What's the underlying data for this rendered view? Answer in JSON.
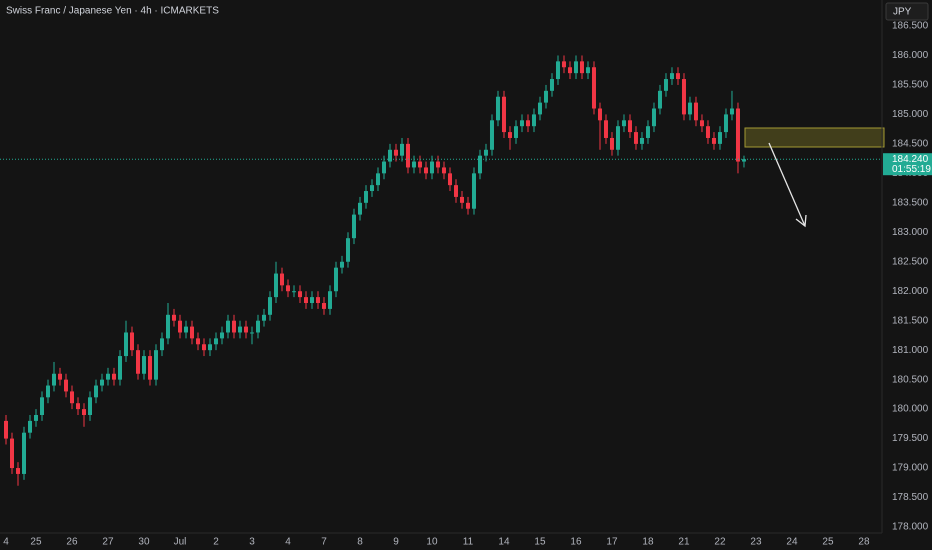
{
  "chart_data": {
    "type": "candlestick",
    "title": "Swiss Franc / Japanese Yen · 4h · ICMARKETS",
    "currency": "JPY",
    "up_color": "#22ab94",
    "down_color": "#f23645",
    "grid": false,
    "ylim": [
      177.898,
      186.941
    ],
    "yticks": [
      {
        "value": 186.5,
        "label": "186.500"
      },
      {
        "value": 186,
        "label": "186.000"
      },
      {
        "value": 185.5,
        "label": "185.500"
      },
      {
        "value": 185,
        "label": "185.000"
      },
      {
        "value": 184.5,
        "label": "184.500"
      },
      {
        "value": 184,
        "label": "184.000"
      },
      {
        "value": 183.5,
        "label": "183.500"
      },
      {
        "value": 183,
        "label": "183.000"
      },
      {
        "value": 182.5,
        "label": "182.500"
      },
      {
        "value": 182,
        "label": "182.000"
      },
      {
        "value": 181.5,
        "label": "181.500"
      },
      {
        "value": 181,
        "label": "181.000"
      },
      {
        "value": 180.5,
        "label": "180.500"
      },
      {
        "value": 180,
        "label": "180.000"
      },
      {
        "value": 179.5,
        "label": "179.500"
      },
      {
        "value": 179,
        "label": "179.000"
      },
      {
        "value": 178.5,
        "label": "178.500"
      },
      {
        "value": 178,
        "label": "178.000"
      }
    ],
    "xlim": [
      -1,
      145.67
    ],
    "xticks": [
      {
        "value": 0,
        "label": "4"
      },
      {
        "value": 5,
        "label": "25"
      },
      {
        "value": 11,
        "label": "26"
      },
      {
        "value": 17,
        "label": "27"
      },
      {
        "value": 23,
        "label": "30"
      },
      {
        "value": 29,
        "label": "Jul"
      },
      {
        "value": 35,
        "label": "2"
      },
      {
        "value": 41,
        "label": "3"
      },
      {
        "value": 47,
        "label": "4"
      },
      {
        "value": 53,
        "label": "7"
      },
      {
        "value": 59,
        "label": "8"
      },
      {
        "value": 65,
        "label": "9"
      },
      {
        "value": 71,
        "label": "10"
      },
      {
        "value": 77,
        "label": "11"
      },
      {
        "value": 83,
        "label": "14"
      },
      {
        "value": 89,
        "label": "15"
      },
      {
        "value": 95,
        "label": "16"
      },
      {
        "value": 101,
        "label": "17"
      },
      {
        "value": 107,
        "label": "18"
      },
      {
        "value": 113,
        "label": "21"
      },
      {
        "value": 119,
        "label": "22"
      },
      {
        "value": 125,
        "label": "23"
      },
      {
        "value": 131,
        "label": "24"
      },
      {
        "value": 137,
        "label": "25"
      },
      {
        "value": 143,
        "label": "28"
      }
    ],
    "last_price": {
      "value": 184.24,
      "label": "184.240"
    },
    "countdown": "01:55:19",
    "candles": [
      [
        179.8,
        179.9,
        179.4,
        179.5
      ],
      [
        179.5,
        179.6,
        178.9,
        179.0
      ],
      [
        179.0,
        179.1,
        178.7,
        178.9
      ],
      [
        178.9,
        179.7,
        178.8,
        179.6
      ],
      [
        179.6,
        179.9,
        179.5,
        179.8
      ],
      [
        179.8,
        180.0,
        179.7,
        179.9
      ],
      [
        179.9,
        180.3,
        179.8,
        180.2
      ],
      [
        180.2,
        180.5,
        180.1,
        180.4
      ],
      [
        180.4,
        180.8,
        180.3,
        180.6
      ],
      [
        180.6,
        180.7,
        180.4,
        180.5
      ],
      [
        180.5,
        180.6,
        180.2,
        180.3
      ],
      [
        180.3,
        180.4,
        180.0,
        180.1
      ],
      [
        180.1,
        180.2,
        179.9,
        180.0
      ],
      [
        180.0,
        180.1,
        179.7,
        179.9
      ],
      [
        179.9,
        180.3,
        179.8,
        180.2
      ],
      [
        180.2,
        180.5,
        180.1,
        180.4
      ],
      [
        180.4,
        180.6,
        180.3,
        180.5
      ],
      [
        180.5,
        180.7,
        180.4,
        180.6
      ],
      [
        180.6,
        180.7,
        180.4,
        180.5
      ],
      [
        180.5,
        181.0,
        180.4,
        180.9
      ],
      [
        180.9,
        181.5,
        180.8,
        181.3
      ],
      [
        181.3,
        181.4,
        180.9,
        181.0
      ],
      [
        181.0,
        181.1,
        180.5,
        180.6
      ],
      [
        180.6,
        181.0,
        180.5,
        180.9
      ],
      [
        180.9,
        181.0,
        180.4,
        180.5
      ],
      [
        180.5,
        181.1,
        180.4,
        181.0
      ],
      [
        181.0,
        181.3,
        180.9,
        181.2
      ],
      [
        181.2,
        181.8,
        181.1,
        181.6
      ],
      [
        181.6,
        181.7,
        181.4,
        181.5
      ],
      [
        181.5,
        181.6,
        181.2,
        181.3
      ],
      [
        181.3,
        181.5,
        181.2,
        181.4
      ],
      [
        181.4,
        181.5,
        181.1,
        181.2
      ],
      [
        181.2,
        181.3,
        181.0,
        181.1
      ],
      [
        181.1,
        181.2,
        180.9,
        181.0
      ],
      [
        181.0,
        181.2,
        180.9,
        181.1
      ],
      [
        181.1,
        181.3,
        181.0,
        181.2
      ],
      [
        181.2,
        181.4,
        181.1,
        181.3
      ],
      [
        181.3,
        181.6,
        181.2,
        181.5
      ],
      [
        181.5,
        181.6,
        181.2,
        181.3
      ],
      [
        181.3,
        181.5,
        181.2,
        181.4
      ],
      [
        181.4,
        181.5,
        181.2,
        181.3
      ],
      [
        181.3,
        181.4,
        181.1,
        181.3
      ],
      [
        181.3,
        181.6,
        181.2,
        181.5
      ],
      [
        181.5,
        181.7,
        181.4,
        181.6
      ],
      [
        181.6,
        182.0,
        181.5,
        181.9
      ],
      [
        181.9,
        182.5,
        181.8,
        182.3
      ],
      [
        182.3,
        182.4,
        182.0,
        182.1
      ],
      [
        182.1,
        182.2,
        181.9,
        182.0
      ],
      [
        182.0,
        182.1,
        181.9,
        182.0
      ],
      [
        182.0,
        182.1,
        181.8,
        181.9
      ],
      [
        181.9,
        182.0,
        181.7,
        181.8
      ],
      [
        181.8,
        182.0,
        181.7,
        181.9
      ],
      [
        181.9,
        182.0,
        181.7,
        181.8
      ],
      [
        181.8,
        181.9,
        181.6,
        181.7
      ],
      [
        181.7,
        182.1,
        181.6,
        182.0
      ],
      [
        182.0,
        182.5,
        181.9,
        182.4
      ],
      [
        182.4,
        182.6,
        182.3,
        182.5
      ],
      [
        182.5,
        183.0,
        182.4,
        182.9
      ],
      [
        182.9,
        183.4,
        182.8,
        183.3
      ],
      [
        183.3,
        183.6,
        183.2,
        183.5
      ],
      [
        183.5,
        183.8,
        183.4,
        183.7
      ],
      [
        183.7,
        183.9,
        183.6,
        183.8
      ],
      [
        183.8,
        184.1,
        183.7,
        184.0
      ],
      [
        184.0,
        184.3,
        183.9,
        184.2
      ],
      [
        184.2,
        184.5,
        184.1,
        184.4
      ],
      [
        184.4,
        184.5,
        184.2,
        184.3
      ],
      [
        184.3,
        184.6,
        184.2,
        184.5
      ],
      [
        184.5,
        184.6,
        184.0,
        184.1
      ],
      [
        184.1,
        184.3,
        184.0,
        184.2
      ],
      [
        184.2,
        184.3,
        184.0,
        184.1
      ],
      [
        184.1,
        184.2,
        183.9,
        184.0
      ],
      [
        184.0,
        184.3,
        183.9,
        184.2
      ],
      [
        184.2,
        184.3,
        184.0,
        184.1
      ],
      [
        184.1,
        184.2,
        183.9,
        184.0
      ],
      [
        184.0,
        184.1,
        183.7,
        183.8
      ],
      [
        183.8,
        183.9,
        183.5,
        183.6
      ],
      [
        183.6,
        183.7,
        183.4,
        183.5
      ],
      [
        183.5,
        183.6,
        183.3,
        183.4
      ],
      [
        183.4,
        184.1,
        183.3,
        184.0
      ],
      [
        184.0,
        184.4,
        183.9,
        184.3
      ],
      [
        184.3,
        184.5,
        184.2,
        184.4
      ],
      [
        184.4,
        185.0,
        184.3,
        184.9
      ],
      [
        184.9,
        185.4,
        184.8,
        185.3
      ],
      [
        185.3,
        185.4,
        184.6,
        184.7
      ],
      [
        184.7,
        184.8,
        184.4,
        184.6
      ],
      [
        184.6,
        184.9,
        184.5,
        184.8
      ],
      [
        184.8,
        185.0,
        184.7,
        184.9
      ],
      [
        184.9,
        185.0,
        184.7,
        184.8
      ],
      [
        184.8,
        185.1,
        184.7,
        185.0
      ],
      [
        185.0,
        185.3,
        184.9,
        185.2
      ],
      [
        185.2,
        185.5,
        185.1,
        185.4
      ],
      [
        185.4,
        185.7,
        185.3,
        185.6
      ],
      [
        185.6,
        186.0,
        185.5,
        185.9
      ],
      [
        185.9,
        186.0,
        185.7,
        185.8
      ],
      [
        185.8,
        185.9,
        185.6,
        185.7
      ],
      [
        185.7,
        186.0,
        185.6,
        185.9
      ],
      [
        185.9,
        186.0,
        185.6,
        185.7
      ],
      [
        185.7,
        185.9,
        185.6,
        185.8
      ],
      [
        185.8,
        185.9,
        185.0,
        185.1
      ],
      [
        185.1,
        185.2,
        184.4,
        184.9
      ],
      [
        184.9,
        185.0,
        184.5,
        184.6
      ],
      [
        184.6,
        184.7,
        184.3,
        184.4
      ],
      [
        184.4,
        184.9,
        184.3,
        184.8
      ],
      [
        184.8,
        185.0,
        184.7,
        184.9
      ],
      [
        184.9,
        185.0,
        184.6,
        184.7
      ],
      [
        184.7,
        184.8,
        184.4,
        184.5
      ],
      [
        184.5,
        184.7,
        184.4,
        184.6
      ],
      [
        184.6,
        184.9,
        184.5,
        184.8
      ],
      [
        184.8,
        185.2,
        184.7,
        185.1
      ],
      [
        185.1,
        185.5,
        185.0,
        185.4
      ],
      [
        185.4,
        185.7,
        185.3,
        185.6
      ],
      [
        185.6,
        185.8,
        185.5,
        185.7
      ],
      [
        185.7,
        185.8,
        185.5,
        185.6
      ],
      [
        185.6,
        185.7,
        184.9,
        185.0
      ],
      [
        185.0,
        185.3,
        184.9,
        185.2
      ],
      [
        185.2,
        185.3,
        184.8,
        184.9
      ],
      [
        184.9,
        185.0,
        184.7,
        184.8
      ],
      [
        184.8,
        184.9,
        184.5,
        184.6
      ],
      [
        184.6,
        184.7,
        184.4,
        184.5
      ],
      [
        184.5,
        184.8,
        184.4,
        184.7
      ],
      [
        184.7,
        185.1,
        184.6,
        185.0
      ],
      [
        185.0,
        185.4,
        184.9,
        185.1
      ],
      [
        185.1,
        185.2,
        184.0,
        184.2
      ],
      [
        184.2,
        184.3,
        184.1,
        184.24
      ]
    ]
  }
}
